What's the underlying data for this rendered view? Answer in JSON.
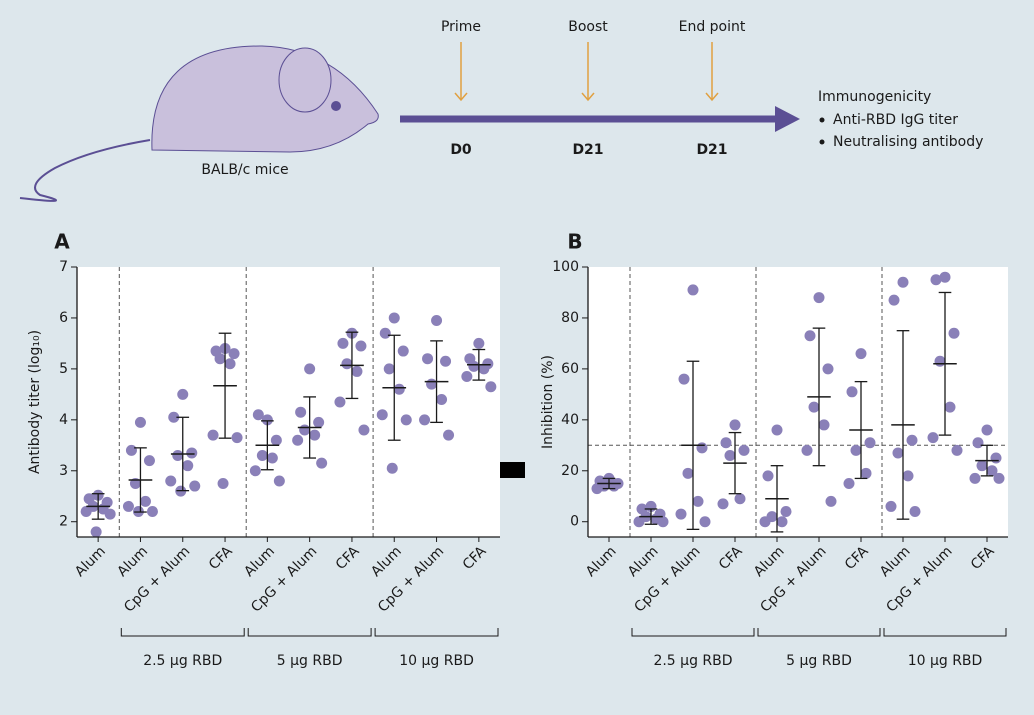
{
  "schematic": {
    "mouse_label": "BALB/c mice",
    "timeline": [
      {
        "event": "Prime",
        "day": "D0"
      },
      {
        "event": "Boost",
        "day": "D21"
      },
      {
        "event": "End point",
        "day": "D21"
      }
    ],
    "readout": {
      "title": "Immunogenicity",
      "items": [
        "Anti-RBD IgG titer",
        "Neutralising antibody"
      ]
    }
  },
  "chart_data": [
    {
      "type": "scatter",
      "panel": "A",
      "y_label": "Antibody titer (log₁₀)",
      "color": "#8a80b8",
      "ylim": [
        1.7,
        7
      ],
      "yticks": [
        2,
        3,
        4,
        5,
        6,
        7
      ],
      "groups": [
        {
          "label": null,
          "categories": [
            {
              "name": "Alum",
              "values": [
                2.52,
                2.45,
                2.38,
                2.3,
                2.25,
                2.2,
                2.15,
                1.8
              ],
              "mean": 2.3,
              "sd": 0.25
            }
          ]
        },
        {
          "label": "2.5 µg RBD",
          "categories": [
            {
              "name": "Alum",
              "values": [
                3.95,
                3.4,
                3.2,
                2.75,
                2.4,
                2.3,
                2.2,
                2.2
              ],
              "mean": 2.82,
              "sd": 0.63
            },
            {
              "name": "CpG + Alum",
              "values": [
                4.5,
                4.05,
                3.35,
                3.3,
                3.1,
                2.8,
                2.7,
                2.6
              ],
              "mean": 3.33,
              "sd": 0.72
            },
            {
              "name": "CFA",
              "values": [
                5.4,
                5.35,
                5.3,
                5.2,
                5.1,
                3.7,
                3.65,
                2.75
              ],
              "mean": 4.67,
              "sd": 1.03
            }
          ]
        },
        {
          "label": "5 µg RBD",
          "categories": [
            {
              "name": "Alum",
              "values": [
                4.0,
                4.1,
                3.6,
                3.3,
                3.25,
                3.0,
                2.8
              ],
              "mean": 3.5,
              "sd": 0.48
            },
            {
              "name": "CpG + Alum",
              "values": [
                5.0,
                4.15,
                3.95,
                3.8,
                3.7,
                3.6,
                3.15
              ],
              "mean": 3.85,
              "sd": 0.6
            },
            {
              "name": "CFA",
              "values": [
                5.7,
                5.5,
                5.45,
                5.1,
                4.95,
                4.35,
                3.8
              ],
              "mean": 5.07,
              "sd": 0.65
            }
          ]
        },
        {
          "label": "10 µg RBD",
          "categories": [
            {
              "name": "Alum",
              "values": [
                6.0,
                5.7,
                5.35,
                5.0,
                4.6,
                4.1,
                4.0,
                3.05
              ],
              "mean": 4.63,
              "sd": 1.03
            },
            {
              "name": "CpG + Alum",
              "values": [
                5.95,
                5.2,
                5.15,
                4.7,
                4.4,
                4.0,
                3.7
              ],
              "mean": 4.75,
              "sd": 0.8
            },
            {
              "name": "CFA",
              "values": [
                5.5,
                5.2,
                5.1,
                5.05,
                5.0,
                4.85,
                4.65
              ],
              "mean": 5.08,
              "sd": 0.3
            }
          ]
        }
      ]
    },
    {
      "type": "scatter",
      "panel": "B",
      "y_label": "Inhibition (%)",
      "color": "#8a80b8",
      "ylim": [
        -6,
        100
      ],
      "yticks": [
        0,
        20,
        40,
        60,
        80,
        100
      ],
      "reference_line": 30,
      "groups": [
        {
          "label": null,
          "categories": [
            {
              "name": "Alum",
              "values": [
                17,
                16,
                15,
                14,
                14,
                13
              ],
              "mean": 15,
              "sd": 2
            }
          ]
        },
        {
          "label": "2.5 µg RBD",
          "categories": [
            {
              "name": "Alum",
              "values": [
                6,
                5,
                3,
                2,
                1,
                0,
                0
              ],
              "mean": 2,
              "sd": 3
            },
            {
              "name": "CpG + Alum",
              "values": [
                91,
                56,
                29,
                19,
                8,
                3,
                0
              ],
              "mean": 30,
              "sd": 33
            },
            {
              "name": "CFA",
              "values": [
                38,
                31,
                28,
                26,
                9,
                7
              ],
              "mean": 23,
              "sd": 12
            }
          ]
        },
        {
          "label": "5 µg RBD",
          "categories": [
            {
              "name": "Alum",
              "values": [
                36,
                18,
                4,
                2,
                0,
                0
              ],
              "mean": 9,
              "sd": 13
            },
            {
              "name": "CpG + Alum",
              "values": [
                88,
                73,
                60,
                45,
                38,
                28,
                8
              ],
              "mean": 49,
              "sd": 27
            },
            {
              "name": "CFA",
              "values": [
                66,
                51,
                31,
                28,
                19,
                15
              ],
              "mean": 36,
              "sd": 19
            }
          ]
        },
        {
          "label": "10 µg RBD",
          "categories": [
            {
              "name": "Alum",
              "values": [
                94,
                87,
                32,
                27,
                18,
                6,
                4
              ],
              "mean": 38,
              "sd": 37
            },
            {
              "name": "CpG + Alum",
              "values": [
                96,
                95,
                74,
                63,
                45,
                33,
                28
              ],
              "mean": 62,
              "sd": 28
            },
            {
              "name": "CFA",
              "values": [
                36,
                31,
                25,
                22,
                20,
                17,
                17
              ],
              "mean": 24,
              "sd": 6
            }
          ]
        }
      ]
    }
  ]
}
